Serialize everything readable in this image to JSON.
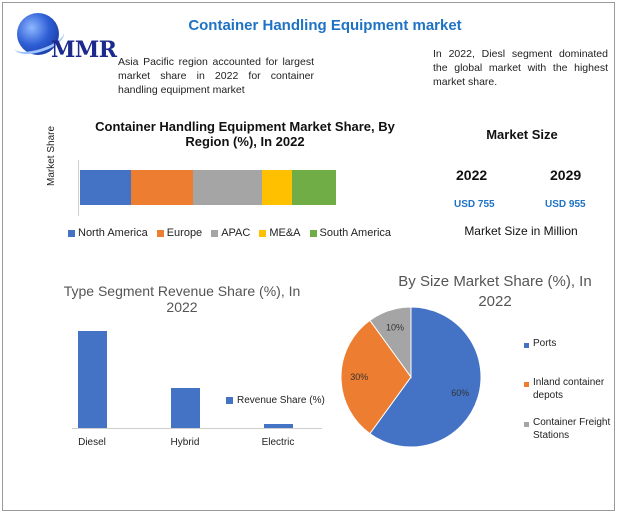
{
  "header": {
    "logo_text": "MMR",
    "title": "Container Handling Equipment market"
  },
  "notes": {
    "left": "Asia Pacific region accounted for largest market share in 2022 for container handling equipment market",
    "right": "In 2022, Diesl segment dominated the global market with the highest market share."
  },
  "market_size": {
    "title": "Market Size",
    "years": [
      "2022",
      "2029"
    ],
    "values": [
      "USD 755",
      "USD 955"
    ],
    "caption": "Market Size in Million"
  },
  "chart_data": [
    {
      "type": "bar",
      "orientation": "horizontal-stacked",
      "title": "Container Handling Equipment Market Share, By Region (%), In 2022",
      "ylabel": "Market Share",
      "legend_position": "bottom",
      "categories": [
        ""
      ],
      "series": [
        {
          "name": "North America",
          "values": [
            20
          ],
          "color": "#4472c4"
        },
        {
          "name": "Europe",
          "values": [
            24
          ],
          "color": "#ed7d31"
        },
        {
          "name": "APAC",
          "values": [
            27
          ],
          "color": "#a5a5a5"
        },
        {
          "name": "ME&A",
          "values": [
            12
          ],
          "color": "#ffc000"
        },
        {
          "name": "South America",
          "values": [
            17
          ],
          "color": "#70ad47"
        }
      ]
    },
    {
      "type": "bar",
      "title": "Type Segment Revenue Share (%), In 2022",
      "categories": [
        "Diesel",
        "Hybrid",
        "Electric"
      ],
      "series": [
        {
          "name": "Revenue Share (%)",
          "values": [
            65,
            27,
            3
          ],
          "color": "#4472c4"
        }
      ],
      "ylim": [
        0,
        70
      ],
      "grid": false,
      "legend_position": "right"
    },
    {
      "type": "pie",
      "title": "By Size Market Share (%), In 2022",
      "labels": [
        "Ports",
        "Inland container depots",
        "Container Freight Stations"
      ],
      "values": [
        60,
        30,
        10
      ],
      "value_labels": [
        "60%",
        "30%",
        "10%"
      ],
      "colors": [
        "#4472c4",
        "#ed7d31",
        "#a5a5a5"
      ],
      "legend_position": "right"
    }
  ]
}
